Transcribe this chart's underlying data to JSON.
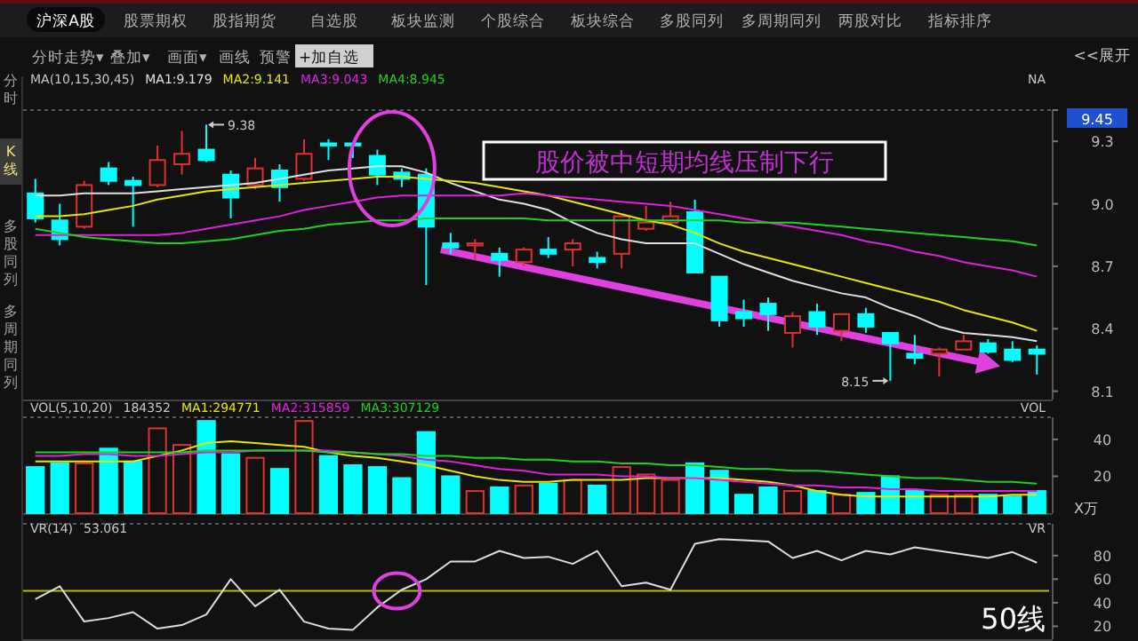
{
  "chart_data": [
    {
      "type": "other",
      "annotations": [
        "沪深A股",
        "股票期权",
        "股指期货",
        "自选股",
        "板块监测",
        "个股综合",
        "板块综合",
        "多股同列",
        "多周期同列",
        "两股对比",
        "指标排序"
      ]
    },
    {
      "type": "other",
      "annotations": [
        "分时走势▾",
        "叠加▾",
        "画面▾",
        "画线",
        "预警",
        "+加自选",
        "<<展开"
      ]
    },
    {
      "type": "other",
      "annotations": [
        "分时",
        "K线",
        "多股同列",
        "多周期同列"
      ]
    },
    {
      "type": "candlestick",
      "title": "MA(10,15,30,45)",
      "categories": [
        null,
        null,
        null,
        null,
        null,
        null,
        null,
        null,
        null,
        null,
        null,
        null,
        null,
        null,
        null,
        null,
        null,
        null,
        null,
        null,
        null,
        null,
        null,
        null,
        null,
        null,
        null,
        null,
        null,
        null,
        null,
        null,
        null,
        null,
        null,
        null,
        null,
        null,
        null,
        null,
        null,
        null
      ],
      "ohlc": [
        [
          9.05,
          9.12,
          8.91,
          8.93
        ],
        [
          8.92,
          9.0,
          8.8,
          8.83
        ],
        [
          8.89,
          9.11,
          8.88,
          9.09
        ],
        [
          9.17,
          9.2,
          9.09,
          9.11
        ],
        [
          9.11,
          9.13,
          8.89,
          9.09
        ],
        [
          9.09,
          9.28,
          9.08,
          9.21
        ],
        [
          9.19,
          9.35,
          9.14,
          9.24
        ],
        [
          9.26,
          9.38,
          9.2,
          9.21
        ],
        [
          9.14,
          9.16,
          8.93,
          9.03
        ],
        [
          9.09,
          9.22,
          9.07,
          9.17
        ],
        [
          9.16,
          9.19,
          9.01,
          9.08
        ],
        [
          9.12,
          9.31,
          9.11,
          9.24
        ],
        [
          9.29,
          9.31,
          9.21,
          9.28
        ],
        [
          9.29,
          9.29,
          9.22,
          9.28
        ],
        [
          9.23,
          9.26,
          9.09,
          9.14
        ],
        [
          9.15,
          9.17,
          9.08,
          9.12
        ],
        [
          9.14,
          9.17,
          8.61,
          8.89
        ],
        [
          8.81,
          8.86,
          8.76,
          8.79
        ],
        [
          8.8,
          8.83,
          8.73,
          8.81
        ],
        [
          8.76,
          8.79,
          8.65,
          8.73
        ],
        [
          8.72,
          8.79,
          8.7,
          8.78
        ],
        [
          8.78,
          8.84,
          8.74,
          8.76
        ],
        [
          8.78,
          8.83,
          8.7,
          8.81
        ],
        [
          8.74,
          8.77,
          8.69,
          8.72
        ],
        [
          8.76,
          8.94,
          8.69,
          8.94
        ],
        [
          8.88,
          8.99,
          8.87,
          8.91
        ],
        [
          8.91,
          9.01,
          8.9,
          8.94
        ],
        [
          8.96,
          9.02,
          8.67,
          8.67
        ],
        [
          8.65,
          8.65,
          8.41,
          8.44
        ],
        [
          8.48,
          8.54,
          8.41,
          8.45
        ],
        [
          8.52,
          8.55,
          8.39,
          8.47
        ],
        [
          8.38,
          8.48,
          8.31,
          8.46
        ],
        [
          8.48,
          8.52,
          8.37,
          8.41
        ],
        [
          8.39,
          8.47,
          8.34,
          8.47
        ],
        [
          8.47,
          8.5,
          8.38,
          8.41
        ],
        [
          8.38,
          8.38,
          8.15,
          8.33
        ],
        [
          8.28,
          8.37,
          8.23,
          8.26
        ],
        [
          8.28,
          8.31,
          8.17,
          8.3
        ],
        [
          8.3,
          8.37,
          8.3,
          8.34
        ],
        [
          8.33,
          8.35,
          8.28,
          8.29
        ],
        [
          8.3,
          8.34,
          8.24,
          8.25
        ],
        [
          8.3,
          8.32,
          8.18,
          8.28
        ]
      ],
      "series": [
        {
          "type": "line",
          "name": "MA1:9.179",
          "color": "#e0e0e0",
          "values": [
            9.04,
            9.04,
            9.05,
            9.05,
            9.05,
            9.06,
            9.07,
            9.08,
            9.09,
            9.1,
            9.12,
            9.14,
            9.16,
            9.17,
            9.18,
            9.18,
            9.15,
            9.1,
            9.06,
            9.02,
            9.0,
            8.97,
            8.91,
            8.86,
            8.83,
            8.81,
            8.81,
            8.81,
            8.76,
            8.71,
            8.67,
            8.63,
            8.6,
            8.57,
            8.55,
            8.5,
            8.46,
            8.41,
            8.38,
            8.37,
            8.36,
            8.34
          ]
        },
        {
          "type": "line",
          "name": "MA2:9.141",
          "color": "#e6e600",
          "values": [
            8.94,
            8.94,
            8.95,
            8.97,
            8.99,
            9.02,
            9.04,
            9.06,
            9.07,
            9.08,
            9.09,
            9.1,
            9.11,
            9.12,
            9.13,
            9.13,
            9.12,
            9.11,
            9.1,
            9.08,
            9.06,
            9.04,
            9.01,
            8.98,
            8.95,
            8.92,
            8.9,
            8.86,
            8.81,
            8.77,
            8.74,
            8.71,
            8.68,
            8.65,
            8.62,
            8.59,
            8.56,
            8.53,
            8.49,
            8.46,
            8.43,
            8.39
          ]
        },
        {
          "type": "line",
          "name": "MA3:9.043",
          "color": "#e020e0",
          "values": [
            8.85,
            8.85,
            8.85,
            8.85,
            8.85,
            8.85,
            8.86,
            8.88,
            8.9,
            8.92,
            8.94,
            8.97,
            8.99,
            9.01,
            9.03,
            9.04,
            9.04,
            9.04,
            9.04,
            9.04,
            9.05,
            9.04,
            9.03,
            9.02,
            9.01,
            9.0,
            8.99,
            8.97,
            8.95,
            8.93,
            8.91,
            8.89,
            8.87,
            8.85,
            8.82,
            8.8,
            8.77,
            8.75,
            8.72,
            8.7,
            8.68,
            8.65
          ]
        },
        {
          "type": "line",
          "name": "MA4:8.945",
          "color": "#20d020",
          "values": [
            8.88,
            8.86,
            8.84,
            8.83,
            8.82,
            8.81,
            8.81,
            8.82,
            8.83,
            8.85,
            8.87,
            8.88,
            8.9,
            8.91,
            8.92,
            8.92,
            8.93,
            8.93,
            8.93,
            8.93,
            8.93,
            8.92,
            8.92,
            8.92,
            8.92,
            8.92,
            8.92,
            8.92,
            8.92,
            8.91,
            8.91,
            8.91,
            8.9,
            8.89,
            8.88,
            8.87,
            8.86,
            8.85,
            8.84,
            8.83,
            8.82,
            8.8
          ]
        }
      ],
      "ylim": [
        8.06,
        9.45
      ],
      "yticks": [
        8.1,
        8.4,
        8.7,
        {
          "value": 9.0,
          "label": "9.0"
        },
        9.3,
        9.45
      ],
      "annotations": [
        "NA",
        "股价被中短期均线压制下行",
        "9.38",
        "8.15"
      ]
    },
    {
      "type": "bar",
      "title": "VOL(5,10,20)",
      "subtitle": "184352",
      "ylabel": "X万",
      "categories": [
        null,
        null,
        null,
        null,
        null,
        null,
        null,
        null,
        null,
        null,
        null,
        null,
        null,
        null,
        null,
        null,
        null,
        null,
        null,
        null,
        null,
        null,
        null,
        null,
        null,
        null,
        null,
        null,
        null,
        null,
        null,
        null,
        null,
        null,
        null,
        null,
        null,
        null,
        null,
        null,
        null,
        null
      ],
      "series": [
        {
          "type": "bar",
          "values": [
            25,
            27,
            27,
            35,
            28,
            46,
            37,
            50,
            32,
            30,
            24,
            50,
            31,
            26,
            25,
            19,
            44,
            20,
            12,
            14,
            15,
            16,
            18,
            15,
            25,
            21,
            18,
            27,
            23,
            10,
            14,
            12,
            12,
            10,
            11,
            20,
            12,
            10,
            10,
            10,
            9,
            12
          ],
          "colors": [
            "#00ffff",
            "#00ffff",
            "#e03030",
            "#00ffff",
            "#00ffff",
            "#e03030",
            "#e03030",
            "#00ffff",
            "#00ffff",
            "#e03030",
            "#00ffff",
            "#e03030",
            "#00ffff",
            "#00ffff",
            "#00ffff",
            "#00ffff",
            "#00ffff",
            "#00ffff",
            "#e03030",
            "#00ffff",
            "#e03030",
            "#00ffff",
            "#e03030",
            "#00ffff",
            "#e03030",
            "#e03030",
            "#e03030",
            "#00ffff",
            "#00ffff",
            "#00ffff",
            "#00ffff",
            "#e03030",
            "#00ffff",
            "#e03030",
            "#00ffff",
            "#00ffff",
            "#00ffff",
            "#e03030",
            "#e03030",
            "#00ffff",
            "#00ffff",
            "#00ffff"
          ]
        },
        {
          "type": "line",
          "name": "MA1:294771",
          "color": "#e6e600",
          "values": [
            28,
            28,
            28,
            28,
            28,
            31,
            34,
            38,
            39,
            38,
            37,
            36,
            33,
            31,
            30,
            28,
            26,
            23,
            20,
            18,
            17,
            17,
            18,
            18,
            18,
            19,
            19,
            19,
            19,
            18,
            17,
            15,
            12,
            10,
            9,
            9,
            9,
            9,
            9,
            9,
            10,
            10
          ]
        },
        {
          "type": "line",
          "name": "MA2:315859",
          "color": "#e020e0",
          "values": [
            31,
            31,
            32,
            32,
            31,
            31,
            32,
            33,
            33,
            34,
            34,
            34,
            34,
            33,
            32,
            31,
            29,
            28,
            26,
            24,
            23,
            21,
            21,
            21,
            20,
            20,
            19,
            19,
            18,
            17,
            16,
            15,
            15,
            14,
            14,
            13,
            13,
            12,
            12,
            12,
            12,
            12
          ]
        },
        {
          "type": "line",
          "name": "MA3:307129",
          "color": "#20d020",
          "values": [
            33,
            33,
            33,
            33,
            33,
            33,
            33,
            34,
            34,
            34,
            34,
            34,
            33,
            33,
            32,
            32,
            31,
            31,
            30,
            30,
            29,
            29,
            28,
            28,
            27,
            27,
            26,
            26,
            25,
            24,
            24,
            23,
            23,
            22,
            21,
            20,
            19,
            19,
            18,
            17,
            17,
            16
          ]
        }
      ],
      "ylim": [
        0,
        52
      ],
      "yticks": [
        20,
        40
      ],
      "annotations": [
        "VOL"
      ]
    },
    {
      "type": "line",
      "title": "VR(14)",
      "subtitle": "53.061",
      "categories": [
        null,
        null,
        null,
        null,
        null,
        null,
        null,
        null,
        null,
        null,
        null,
        null,
        null,
        null,
        null,
        null,
        null,
        null,
        null,
        null,
        null,
        null,
        null,
        null,
        null,
        null,
        null,
        null,
        null,
        null,
        null,
        null,
        null,
        null,
        null,
        null,
        null,
        null,
        null,
        null,
        null,
        null
      ],
      "series": [
        {
          "color": "#dddddd",
          "values": [
            43,
            54,
            24,
            27,
            32,
            18,
            21,
            30,
            60,
            37,
            51,
            24,
            18,
            17,
            36,
            51,
            60,
            75,
            75,
            84,
            78,
            79,
            73,
            84,
            54,
            57,
            51,
            90,
            94,
            93,
            92,
            78,
            84,
            76,
            84,
            81,
            87,
            84,
            81,
            78,
            83,
            74
          ]
        }
      ],
      "ylim": [
        9,
        107
      ],
      "yticks": [
        20,
        40,
        60,
        80
      ],
      "ref_lines": [
        {
          "axis": "y",
          "value": 50,
          "color": "#b8b820"
        }
      ],
      "annotations": [
        "VR",
        "50线"
      ]
    }
  ]
}
